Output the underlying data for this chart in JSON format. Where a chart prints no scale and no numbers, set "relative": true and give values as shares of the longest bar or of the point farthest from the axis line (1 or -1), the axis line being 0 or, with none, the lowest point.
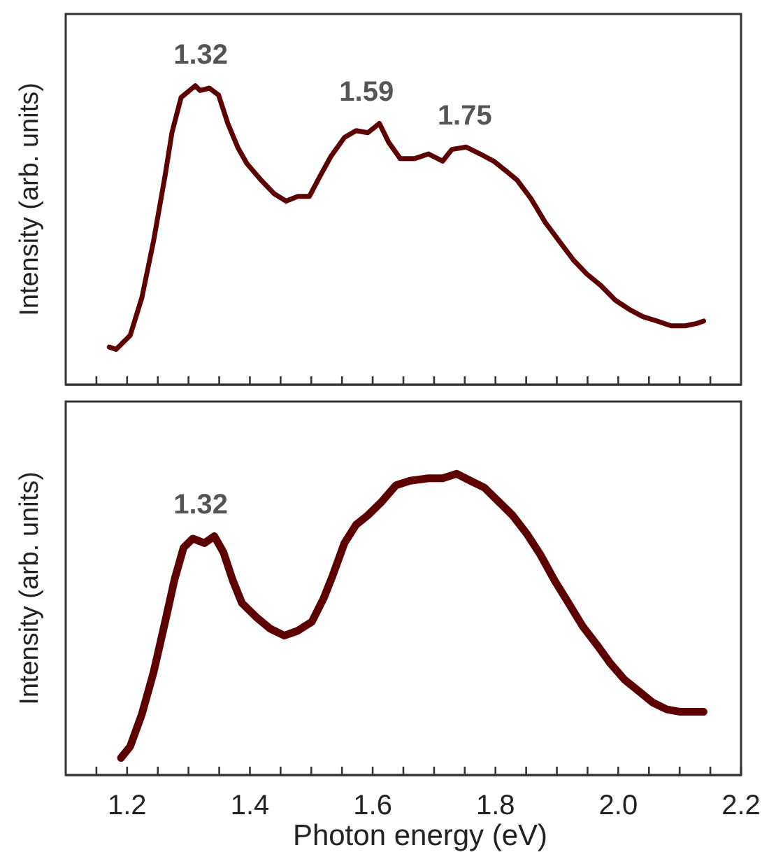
{
  "chart_data": [
    {
      "type": "line",
      "relative": true,
      "ylabel": "Intensity (arb. units)",
      "xlim": [
        1.1,
        2.2
      ],
      "tick_labels": false,
      "xticks": [
        {
          "value": 1.15,
          "label": null
        },
        {
          "value": 1.2,
          "label": null
        },
        {
          "value": 1.25,
          "label": null
        },
        {
          "value": 1.3,
          "label": null
        },
        {
          "value": 1.35,
          "label": null
        },
        {
          "value": 1.4,
          "label": null
        },
        {
          "value": 1.45,
          "label": null
        },
        {
          "value": 1.5,
          "label": null
        },
        {
          "value": 1.55,
          "label": null
        },
        {
          "value": 1.6,
          "label": null
        },
        {
          "value": 1.65,
          "label": null
        },
        {
          "value": 1.7,
          "label": null
        },
        {
          "value": 1.75,
          "label": null
        },
        {
          "value": 1.8,
          "label": null
        },
        {
          "value": 1.85,
          "label": null
        },
        {
          "value": 1.9,
          "label": null
        },
        {
          "value": 1.95,
          "label": null
        },
        {
          "value": 2.0,
          "label": null
        },
        {
          "value": 2.05,
          "label": null
        },
        {
          "value": 2.1,
          "label": null
        },
        {
          "value": 2.15,
          "label": null
        }
      ],
      "annotations": [
        {
          "text": "1.32",
          "x": 1.32,
          "y": 1.0
        },
        {
          "text": "1.59",
          "x": 1.59,
          "y": 0.874
        },
        {
          "text": "1.75",
          "x": 1.75,
          "y": 0.795
        }
      ],
      "series": [
        {
          "color": "#5c0000",
          "x": [
            1.171,
            1.182,
            1.205,
            1.224,
            1.243,
            1.262,
            1.273,
            1.288,
            1.311,
            1.319,
            1.334,
            1.349,
            1.364,
            1.38,
            1.395,
            1.418,
            1.44,
            1.459,
            1.478,
            1.497,
            1.513,
            1.532,
            1.554,
            1.573,
            1.592,
            1.611,
            1.626,
            1.645,
            1.668,
            1.691,
            1.714,
            1.729,
            1.752,
            1.775,
            1.797,
            1.816,
            1.835,
            1.858,
            1.881,
            1.904,
            1.927,
            1.949,
            1.972,
            1.995,
            2.018,
            2.04,
            2.063,
            2.086,
            2.109,
            2.128,
            2.139
          ],
          "values": [
            0.126,
            0.118,
            0.165,
            0.291,
            0.48,
            0.701,
            0.843,
            0.961,
            1.0,
            0.984,
            0.992,
            0.969,
            0.874,
            0.795,
            0.74,
            0.685,
            0.638,
            0.614,
            0.63,
            0.63,
            0.693,
            0.764,
            0.827,
            0.85,
            0.843,
            0.874,
            0.811,
            0.756,
            0.756,
            0.772,
            0.748,
            0.787,
            0.795,
            0.772,
            0.748,
            0.717,
            0.685,
            0.622,
            0.543,
            0.48,
            0.417,
            0.37,
            0.331,
            0.283,
            0.252,
            0.228,
            0.213,
            0.197,
            0.197,
            0.205,
            0.213
          ]
        }
      ]
    },
    {
      "type": "line",
      "relative": true,
      "ylabel": "Intensity (arb. units)",
      "xlabel": "Photon energy (eV)",
      "xlim": [
        1.1,
        2.2
      ],
      "tick_labels": "x",
      "xticks": [
        {
          "value": 1.15,
          "label": null
        },
        {
          "value": 1.2,
          "label": "1.2"
        },
        {
          "value": 1.25,
          "label": null
        },
        {
          "value": 1.3,
          "label": null
        },
        {
          "value": 1.35,
          "label": null
        },
        {
          "value": 1.4,
          "label": "1.4"
        },
        {
          "value": 1.45,
          "label": null
        },
        {
          "value": 1.5,
          "label": null
        },
        {
          "value": 1.55,
          "label": null
        },
        {
          "value": 1.6,
          "label": "1.6"
        },
        {
          "value": 1.65,
          "label": null
        },
        {
          "value": 1.7,
          "label": null
        },
        {
          "value": 1.75,
          "label": null
        },
        {
          "value": 1.8,
          "label": "1.8"
        },
        {
          "value": 1.85,
          "label": null
        },
        {
          "value": 1.9,
          "label": null
        },
        {
          "value": 1.95,
          "label": null
        },
        {
          "value": 2.0,
          "label": "2.0"
        },
        {
          "value": 2.05,
          "label": null
        },
        {
          "value": 2.1,
          "label": null
        },
        {
          "value": 2.15,
          "label": null
        },
        {
          "value": 2.2,
          "label": "2.2"
        }
      ],
      "annotations": [
        {
          "text": "1.32",
          "x": 1.32,
          "y": 0.793
        }
      ],
      "series": [
        {
          "color": "#5c0000",
          "x": [
            1.19,
            1.205,
            1.224,
            1.243,
            1.262,
            1.277,
            1.292,
            1.307,
            1.326,
            1.342,
            1.357,
            1.372,
            1.387,
            1.41,
            1.433,
            1.456,
            1.478,
            1.501,
            1.52,
            1.535,
            1.554,
            1.573,
            1.592,
            1.615,
            1.638,
            1.661,
            1.691,
            1.714,
            1.737,
            1.759,
            1.782,
            1.805,
            1.828,
            1.851,
            1.873,
            1.896,
            1.919,
            1.942,
            1.965,
            1.987,
            2.01,
            2.033,
            2.056,
            2.079,
            2.101,
            2.124,
            2.139
          ],
          "values": [
            0.057,
            0.095,
            0.202,
            0.34,
            0.509,
            0.647,
            0.755,
            0.785,
            0.77,
            0.793,
            0.739,
            0.647,
            0.571,
            0.525,
            0.486,
            0.463,
            0.479,
            0.509,
            0.586,
            0.663,
            0.77,
            0.831,
            0.862,
            0.908,
            0.962,
            0.977,
            0.985,
            0.985,
            1,
            0.977,
            0.954,
            0.908,
            0.862,
            0.801,
            0.732,
            0.647,
            0.571,
            0.494,
            0.433,
            0.371,
            0.317,
            0.279,
            0.241,
            0.218,
            0.21,
            0.21,
            0.21
          ]
        }
      ]
    }
  ]
}
